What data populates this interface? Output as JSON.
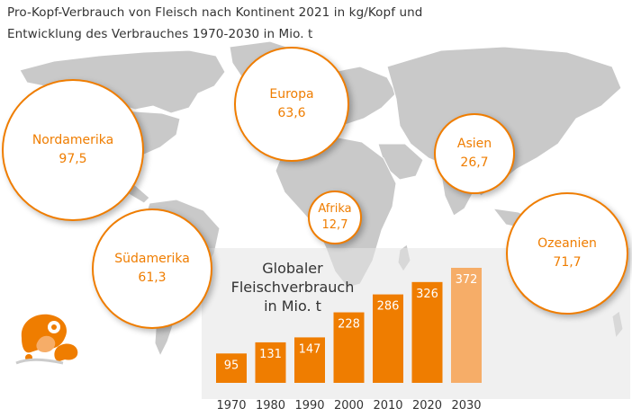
{
  "title_line1": "Pro-Kopf-Verbrauch von Fleisch nach Kontinent 2021 in kg/Kopf und",
  "title_line2": "Entwicklung des Verbrauches 1970-2030 in Mio. t",
  "continents": [
    {
      "name": "Nordamerika",
      "value": "97,5"
    },
    {
      "name": "Europa",
      "value": "63,6"
    },
    {
      "name": "Asien",
      "value": "26,7"
    },
    {
      "name": "Afrika",
      "value": "12,7"
    },
    {
      "name": "Südamerika",
      "value": "61,3"
    },
    {
      "name": "Ozeanien",
      "value": "71,7"
    }
  ],
  "colors": {
    "accent": "#ef7d00",
    "accent_light": "#f6ad68",
    "map_land": "#c9c9c9",
    "map_dark": "#9a9a9a",
    "text": "#333333"
  },
  "chart_data": {
    "type": "bar",
    "title_lines": [
      "Globaler",
      "Fleischverbrauch",
      "in Mio. t"
    ],
    "categories": [
      "1970",
      "1980",
      "1990",
      "2000",
      "2010",
      "2020",
      "2030"
    ],
    "values": [
      95,
      131,
      147,
      228,
      286,
      326,
      372
    ],
    "value_labels": [
      "95",
      "131",
      "147",
      "228",
      "286",
      "326",
      "372"
    ],
    "highlight_last": true,
    "ylim": [
      0,
      380
    ],
    "grid": false
  },
  "icons": [
    "meat-icon"
  ]
}
